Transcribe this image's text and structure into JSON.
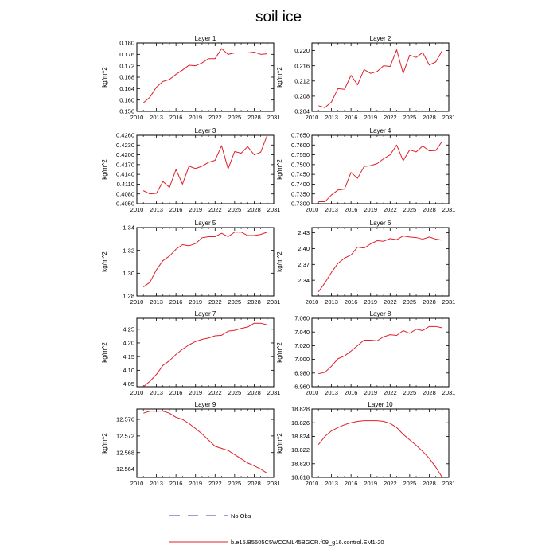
{
  "figure": {
    "title": "soil ice",
    "legend": [
      {
        "label": "No Obs",
        "style": "dashed",
        "color": "#3b3bb0"
      },
      {
        "label": "b.e15.B5505C5WCCML45BGCR.f09_g16.control.EM1-20",
        "style": "solid",
        "color": "#e0202a"
      }
    ],
    "line_color": "#e0202a"
  },
  "chart_data": [
    {
      "type": "line",
      "title": "Layer 1",
      "ylabel": "kg/m^2",
      "xlim": [
        2010,
        2031
      ],
      "xticks": [
        2010,
        2013,
        2016,
        2019,
        2022,
        2025,
        2028,
        2031
      ],
      "xtick_labels": [
        "2010",
        "2013",
        "2016",
        "2019",
        "2022",
        "2025",
        "2028",
        "2031"
      ],
      "ylim": [
        0.156,
        0.18
      ],
      "yticks": [
        0.156,
        0.16,
        0.164,
        0.168,
        0.172,
        0.176,
        0.18
      ],
      "ytick_labels": [
        "0.156",
        "0.160",
        "0.164",
        "0.168",
        "0.172",
        "0.176",
        "0.180"
      ],
      "x": [
        2011,
        2012,
        2013,
        2014,
        2015,
        2016,
        2017,
        2018,
        2019,
        2020,
        2021,
        2022,
        2023,
        2024,
        2025,
        2026,
        2027,
        2028,
        2029,
        2030
      ],
      "y": [
        0.159,
        0.161,
        0.1645,
        0.1665,
        0.1672,
        0.169,
        0.1705,
        0.1722,
        0.172,
        0.173,
        0.1745,
        0.1745,
        0.178,
        0.176,
        0.1765,
        0.1765,
        0.1765,
        0.1768,
        0.176,
        0.1762
      ]
    },
    {
      "type": "line",
      "title": "Layer 2",
      "ylabel": "kg/m^2",
      "xlim": [
        2010,
        2031
      ],
      "xticks": [
        2010,
        2013,
        2016,
        2019,
        2022,
        2025,
        2028,
        2031
      ],
      "xtick_labels": [
        "2010",
        "2013",
        "2016",
        "2019",
        "2022",
        "2025",
        "2028",
        "2031"
      ],
      "ylim": [
        0.204,
        0.222
      ],
      "yticks": [
        0.204,
        0.208,
        0.212,
        0.216,
        0.22
      ],
      "ytick_labels": [
        "0.204",
        "0.208",
        "0.212",
        "0.216",
        "0.220"
      ],
      "x": [
        2011,
        2012,
        2013,
        2014,
        2015,
        2016,
        2017,
        2018,
        2019,
        2020,
        2021,
        2022,
        2023,
        2024,
        2025,
        2026,
        2027,
        2028,
        2029,
        2030
      ],
      "y": [
        0.2055,
        0.205,
        0.2065,
        0.21,
        0.2098,
        0.2135,
        0.211,
        0.215,
        0.214,
        0.2145,
        0.216,
        0.2158,
        0.2202,
        0.214,
        0.2188,
        0.2182,
        0.2195,
        0.2162,
        0.217,
        0.22
      ]
    },
    {
      "type": "line",
      "title": "Layer 3",
      "ylabel": "kg/m^2",
      "xlim": [
        2010,
        2031
      ],
      "xticks": [
        2010,
        2013,
        2016,
        2019,
        2022,
        2025,
        2028,
        2031
      ],
      "xtick_labels": [
        "2010",
        "2013",
        "2016",
        "2019",
        "2022",
        "2025",
        "2028",
        "2031"
      ],
      "ylim": [
        0.405,
        0.426
      ],
      "yticks": [
        0.405,
        0.408,
        0.411,
        0.414,
        0.417,
        0.42,
        0.423,
        0.426
      ],
      "ytick_labels": [
        "0.4050",
        "0.4080",
        "0.4110",
        "0.4140",
        "0.4170",
        "0.4200",
        "0.4230",
        "0.4260"
      ],
      "x": [
        2011,
        2012,
        2013,
        2014,
        2015,
        2016,
        2017,
        2018,
        2019,
        2020,
        2021,
        2022,
        2023,
        2024,
        2025,
        2026,
        2027,
        2028,
        2029,
        2030
      ],
      "y": [
        0.409,
        0.408,
        0.4082,
        0.4118,
        0.41,
        0.4155,
        0.411,
        0.4165,
        0.4158,
        0.4165,
        0.4177,
        0.4183,
        0.4228,
        0.4157,
        0.421,
        0.4205,
        0.4225,
        0.42,
        0.4208,
        0.426
      ]
    },
    {
      "type": "line",
      "title": "Layer 4",
      "ylabel": "kg/m^2",
      "xlim": [
        2010,
        2031
      ],
      "xticks": [
        2010,
        2013,
        2016,
        2019,
        2022,
        2025,
        2028,
        2031
      ],
      "xtick_labels": [
        "2010",
        "2013",
        "2016",
        "2019",
        "2022",
        "2025",
        "2028",
        "2031"
      ],
      "ylim": [
        0.73,
        0.765
      ],
      "yticks": [
        0.73,
        0.735,
        0.74,
        0.745,
        0.75,
        0.755,
        0.76,
        0.765
      ],
      "ytick_labels": [
        "0.7300",
        "0.7350",
        "0.7400",
        "0.7450",
        "0.7500",
        "0.7550",
        "0.7600",
        "0.7650"
      ],
      "x": [
        2011,
        2012,
        2013,
        2014,
        2015,
        2016,
        2017,
        2018,
        2019,
        2020,
        2021,
        2022,
        2023,
        2024,
        2025,
        2026,
        2027,
        2028,
        2029,
        2030
      ],
      "y": [
        0.731,
        0.731,
        0.7345,
        0.737,
        0.7375,
        0.746,
        0.743,
        0.749,
        0.7495,
        0.7505,
        0.753,
        0.755,
        0.76,
        0.752,
        0.7575,
        0.7565,
        0.7595,
        0.757,
        0.7572,
        0.762
      ]
    },
    {
      "type": "line",
      "title": "Layer 5",
      "ylabel": "kg/m^2",
      "xlim": [
        2010,
        2031
      ],
      "xticks": [
        2010,
        2013,
        2016,
        2019,
        2022,
        2025,
        2028,
        2031
      ],
      "xtick_labels": [
        "2010",
        "2013",
        "2016",
        "2019",
        "2022",
        "2025",
        "2028",
        "2031"
      ],
      "ylim": [
        1.28,
        1.34
      ],
      "yticks": [
        1.28,
        1.3,
        1.32,
        1.34
      ],
      "ytick_labels": [
        "1.28",
        "1.30",
        "1.32",
        "1.34"
      ],
      "x": [
        2011,
        2012,
        2013,
        2014,
        2015,
        2016,
        2017,
        2018,
        2019,
        2020,
        2021,
        2022,
        2023,
        2024,
        2025,
        2026,
        2027,
        2028,
        2029,
        2030
      ],
      "y": [
        1.288,
        1.292,
        1.303,
        1.311,
        1.315,
        1.321,
        1.325,
        1.324,
        1.326,
        1.331,
        1.332,
        1.332,
        1.335,
        1.332,
        1.336,
        1.336,
        1.333,
        1.333,
        1.334,
        1.336
      ]
    },
    {
      "type": "line",
      "title": "Layer 6",
      "ylabel": "kg/m^2",
      "xlim": [
        2010,
        2031
      ],
      "xticks": [
        2010,
        2013,
        2016,
        2019,
        2022,
        2025,
        2028,
        2031
      ],
      "xtick_labels": [
        "2010",
        "2013",
        "2016",
        "2019",
        "2022",
        "2025",
        "2028",
        "2031"
      ],
      "ylim": [
        2.31,
        2.44
      ],
      "yticks": [
        2.34,
        2.37,
        2.4,
        2.43
      ],
      "ytick_labels": [
        "2.34",
        "2.37",
        "2.40",
        "2.43"
      ],
      "x": [
        2011,
        2012,
        2013,
        2014,
        2015,
        2016,
        2017,
        2018,
        2019,
        2020,
        2021,
        2022,
        2023,
        2024,
        2025,
        2026,
        2027,
        2028,
        2029,
        2030
      ],
      "y": [
        2.318,
        2.335,
        2.355,
        2.372,
        2.382,
        2.388,
        2.403,
        2.401,
        2.409,
        2.415,
        2.414,
        2.419,
        2.417,
        2.424,
        2.422,
        2.421,
        2.418,
        2.422,
        2.418,
        2.416
      ]
    },
    {
      "type": "line",
      "title": "Layer 7",
      "ylabel": "kg/m^2",
      "xlim": [
        2010,
        2031
      ],
      "xticks": [
        2010,
        2013,
        2016,
        2019,
        2022,
        2025,
        2028,
        2031
      ],
      "xtick_labels": [
        "2010",
        "2013",
        "2016",
        "2019",
        "2022",
        "2025",
        "2028",
        "2031"
      ],
      "ylim": [
        4.04,
        4.29
      ],
      "yticks": [
        4.05,
        4.1,
        4.15,
        4.2,
        4.25
      ],
      "ytick_labels": [
        "4.05",
        "4.10",
        "4.15",
        "4.20",
        "4.25"
      ],
      "x": [
        2011,
        2012,
        2013,
        2014,
        2015,
        2016,
        2017,
        2018,
        2019,
        2020,
        2021,
        2022,
        2023,
        2024,
        2025,
        2026,
        2027,
        2028,
        2029,
        2030
      ],
      "y": [
        4.04,
        4.06,
        4.085,
        4.118,
        4.135,
        4.158,
        4.177,
        4.193,
        4.205,
        4.213,
        4.218,
        4.226,
        4.228,
        4.243,
        4.246,
        4.253,
        4.258,
        4.272,
        4.272,
        4.266
      ]
    },
    {
      "type": "line",
      "title": "Layer 8",
      "ylabel": "kg/m^2",
      "xlim": [
        2010,
        2031
      ],
      "xticks": [
        2010,
        2013,
        2016,
        2019,
        2022,
        2025,
        2028,
        2031
      ],
      "xtick_labels": [
        "2010",
        "2013",
        "2016",
        "2019",
        "2022",
        "2025",
        "2028",
        "2031"
      ],
      "ylim": [
        6.96,
        7.06
      ],
      "yticks": [
        6.96,
        6.98,
        7.0,
        7.02,
        7.04,
        7.06
      ],
      "ytick_labels": [
        "6.960",
        "6.980",
        "7.000",
        "7.020",
        "7.040",
        "7.060"
      ],
      "x": [
        2011,
        2012,
        2013,
        2014,
        2015,
        2016,
        2017,
        2018,
        2019,
        2020,
        2021,
        2022,
        2023,
        2024,
        2025,
        2026,
        2027,
        2028,
        2029,
        2030
      ],
      "y": [
        6.979,
        6.981,
        6.99,
        7.001,
        7.005,
        7.012,
        7.02,
        7.028,
        7.028,
        7.027,
        7.033,
        7.036,
        7.035,
        7.042,
        7.038,
        7.044,
        7.042,
        7.048,
        7.048,
        7.046
      ]
    },
    {
      "type": "line",
      "title": "Layer 9",
      "ylabel": "kg/m^2",
      "xlim": [
        2010,
        2031
      ],
      "xticks": [
        2010,
        2013,
        2016,
        2019,
        2022,
        2025,
        2028,
        2031
      ],
      "xtick_labels": [
        "2010",
        "2013",
        "2016",
        "2019",
        "2022",
        "2025",
        "2028",
        "2031"
      ],
      "ylim": [
        12.562,
        12.5785
      ],
      "yticks": [
        12.564,
        12.568,
        12.572,
        12.576
      ],
      "ytick_labels": [
        "12.564",
        "12.568",
        "12.572",
        "12.576"
      ],
      "x": [
        2011,
        2012,
        2013,
        2014,
        2015,
        2016,
        2017,
        2018,
        2019,
        2020,
        2021,
        2022,
        2023,
        2024,
        2025,
        2026,
        2027,
        2028,
        2029,
        2030
      ],
      "y": [
        12.5775,
        12.578,
        12.578,
        12.578,
        12.5775,
        12.5765,
        12.576,
        12.575,
        12.5738,
        12.5725,
        12.571,
        12.5695,
        12.569,
        12.5685,
        12.5675,
        12.5665,
        12.5655,
        12.5648,
        12.564,
        12.563
      ]
    },
    {
      "type": "line",
      "title": "Layer 10",
      "ylabel": "kg/m^2",
      "xlim": [
        2010,
        2031
      ],
      "xticks": [
        2010,
        2013,
        2016,
        2019,
        2022,
        2025,
        2028,
        2031
      ],
      "xtick_labels": [
        "2010",
        "2013",
        "2016",
        "2019",
        "2022",
        "2025",
        "2028",
        "2031"
      ],
      "ylim": [
        18.818,
        18.828
      ],
      "yticks": [
        18.818,
        18.82,
        18.822,
        18.824,
        18.826,
        18.828
      ],
      "ytick_labels": [
        "18.818",
        "18.820",
        "18.822",
        "18.824",
        "18.826",
        "18.828"
      ],
      "x": [
        2011,
        2012,
        2013,
        2014,
        2015,
        2016,
        2017,
        2018,
        2019,
        2020,
        2021,
        2022,
        2023,
        2024,
        2025,
        2026,
        2027,
        2028,
        2029,
        2030
      ],
      "y": [
        18.8228,
        18.824,
        18.8248,
        18.8253,
        18.8257,
        18.826,
        18.8262,
        18.8263,
        18.8263,
        18.8263,
        18.8262,
        18.8259,
        18.8253,
        18.8243,
        18.8235,
        18.8227,
        18.8218,
        18.8208,
        18.8195,
        18.818
      ]
    }
  ]
}
